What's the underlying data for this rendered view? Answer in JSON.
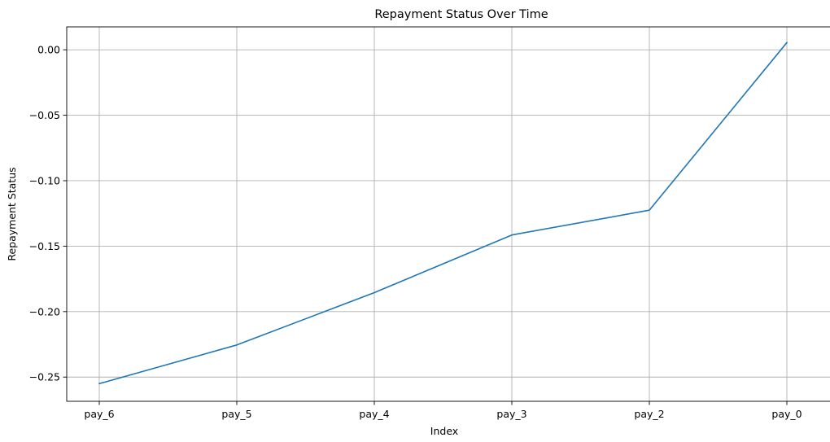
{
  "chart_data": {
    "type": "line",
    "title": "Repayment Status Over Time",
    "xlabel": "Index",
    "ylabel": "Repayment Status",
    "categories": [
      "pay_6",
      "pay_5",
      "pay_4",
      "pay_3",
      "pay_2",
      "pay_0"
    ],
    "series": [
      {
        "color": "#1f77b4",
        "values": [
          -0.255,
          -0.2255,
          -0.1855,
          -0.1415,
          -0.1225,
          0.0055
        ]
      }
    ],
    "ylim": [
      -0.2685,
      0.0175
    ],
    "yticks": [
      0.0,
      -0.05,
      -0.1,
      -0.15,
      -0.2,
      -0.25
    ],
    "ytick_labels": [
      "0.00",
      "−0.05",
      "−0.10",
      "−0.15",
      "−0.20",
      "−0.25"
    ],
    "grid": true,
    "legend": "none"
  }
}
